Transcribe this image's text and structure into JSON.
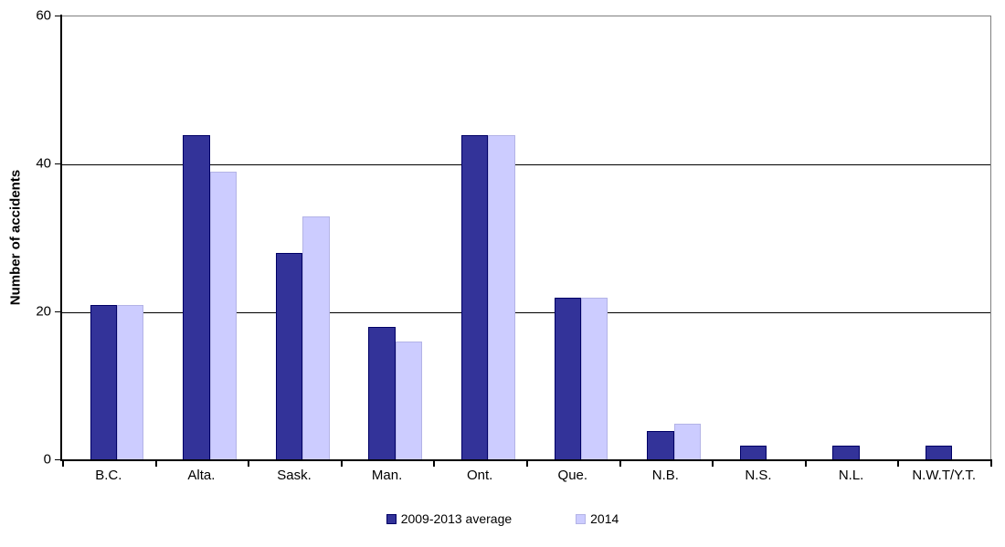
{
  "chart_data": {
    "type": "bar",
    "ylabel": "Number of accidents",
    "xlabel": "",
    "ylim": [
      0,
      60
    ],
    "yticks": [
      0,
      20,
      40,
      60
    ],
    "gridlines": [
      20,
      40
    ],
    "grid": "horizontal",
    "legend_position": "bottom-center",
    "categories": [
      "B.C.",
      "Alta.",
      "Sask.",
      "Man.",
      "Ont.",
      "Que.",
      "N.B.",
      "N.S.",
      "N.L.",
      "N.W.T/Y.T."
    ],
    "series": [
      {
        "name": "2009-2013 average",
        "color": "#333399",
        "border_color": "#000066",
        "values": [
          21,
          44,
          28,
          18,
          44,
          22,
          4,
          2,
          2,
          2
        ]
      },
      {
        "name": "2014",
        "color": "#CCCCFF",
        "border_color": "#B3B3E6",
        "values": [
          21,
          39,
          33,
          16,
          44,
          22,
          5,
          0,
          0,
          0
        ]
      }
    ]
  },
  "colors": {
    "axis": "#000000",
    "plot_border": "#7f7f7f",
    "background": "#ffffff"
  }
}
